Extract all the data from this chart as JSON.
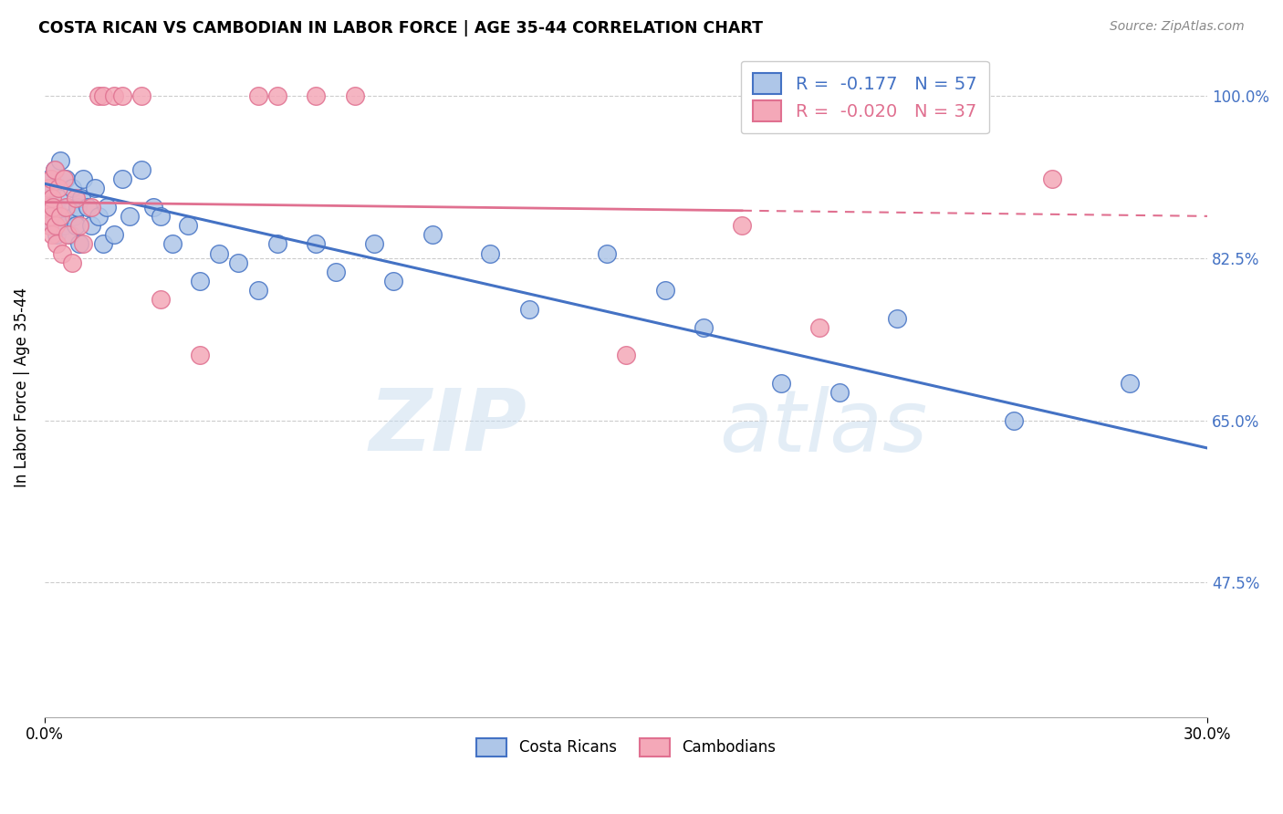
{
  "title": "COSTA RICAN VS CAMBODIAN IN LABOR FORCE | AGE 35-44 CORRELATION CHART",
  "source": "Source: ZipAtlas.com",
  "ylabel": "In Labor Force | Age 35-44",
  "xmin": 0.0,
  "xmax": 30.0,
  "ymin": 33.0,
  "ymax": 104.0,
  "watermark_zip": "ZIP",
  "watermark_atlas": "atlas",
  "blue_label": "Costa Ricans",
  "pink_label": "Cambodians",
  "blue_R": "-0.177",
  "blue_N": "57",
  "pink_R": "-0.020",
  "pink_N": "37",
  "blue_trend_x0": 0.0,
  "blue_trend_y0": 90.5,
  "blue_trend_x1": 30.0,
  "blue_trend_y1": 62.0,
  "pink_trend_x0": 0.0,
  "pink_trend_y0": 88.5,
  "pink_trend_x1": 30.0,
  "pink_trend_y1": 87.0,
  "pink_solid_xmax": 18.0,
  "ytick_values": [
    100.0,
    82.5,
    65.0,
    47.5
  ],
  "ytick_labels": [
    "100.0%",
    "82.5%",
    "65.0%",
    "47.5%"
  ],
  "blue_scatter_x": [
    0.08,
    0.12,
    0.15,
    0.18,
    0.2,
    0.22,
    0.25,
    0.28,
    0.3,
    0.35,
    0.4,
    0.45,
    0.5,
    0.55,
    0.6,
    0.65,
    0.7,
    0.75,
    0.8,
    0.85,
    0.9,
    0.95,
    1.0,
    1.1,
    1.2,
    1.3,
    1.4,
    1.5,
    1.6,
    1.8,
    2.0,
    2.2,
    2.5,
    2.8,
    3.0,
    3.3,
    3.7,
    4.0,
    4.5,
    5.0,
    5.5,
    6.0,
    7.0,
    7.5,
    8.5,
    9.0,
    10.0,
    11.5,
    12.5,
    14.5,
    16.0,
    17.0,
    19.0,
    20.5,
    22.0,
    25.0,
    28.0
  ],
  "blue_scatter_y": [
    89,
    91,
    88,
    87,
    90,
    86,
    92,
    88,
    85,
    89,
    93,
    87,
    86,
    91,
    88,
    85,
    90,
    87,
    86,
    88,
    84,
    89,
    91,
    88,
    86,
    90,
    87,
    84,
    88,
    85,
    91,
    87,
    92,
    88,
    87,
    84,
    86,
    80,
    83,
    82,
    79,
    84,
    84,
    81,
    84,
    80,
    85,
    83,
    77,
    83,
    79,
    75,
    69,
    68,
    76,
    65,
    69
  ],
  "pink_scatter_x": [
    0.08,
    0.1,
    0.12,
    0.14,
    0.16,
    0.18,
    0.2,
    0.22,
    0.25,
    0.28,
    0.3,
    0.35,
    0.4,
    0.45,
    0.5,
    0.55,
    0.6,
    0.7,
    0.8,
    0.9,
    1.0,
    1.2,
    1.4,
    1.5,
    1.8,
    2.0,
    2.5,
    3.0,
    4.0,
    5.5,
    6.0,
    7.0,
    8.0,
    15.0,
    18.0,
    20.0,
    26.0
  ],
  "pink_scatter_y": [
    88,
    90,
    86,
    87,
    91,
    89,
    85,
    88,
    92,
    86,
    84,
    90,
    87,
    83,
    91,
    88,
    85,
    82,
    89,
    86,
    84,
    88,
    100,
    100,
    100,
    100,
    100,
    78,
    72,
    100,
    100,
    100,
    100,
    72,
    86,
    75,
    91
  ],
  "blue_line_color": "#4472C4",
  "pink_line_color": "#E07090",
  "blue_scatter_color": "#AEC6E8",
  "pink_scatter_color": "#F4A8B8",
  "grid_color": "#CCCCCC",
  "background_color": "#FFFFFF"
}
